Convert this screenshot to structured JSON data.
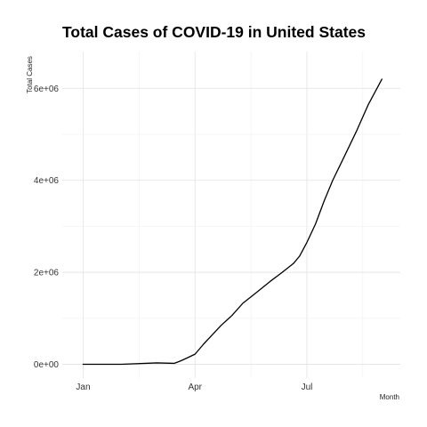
{
  "chart_data": {
    "type": "line",
    "title": "Total Cases of COVID-19 in United States",
    "xlabel": "Month",
    "ylabel": "Total Cases",
    "grid": true,
    "legend": "none",
    "x_ticks": [
      {
        "label": "Jan",
        "value": "2020-01-01"
      },
      {
        "label": "Apr",
        "value": "2020-04-01"
      },
      {
        "label": "Jul",
        "value": "2020-07-01"
      }
    ],
    "y_ticks": [
      {
        "label": "0e+00",
        "value": 0
      },
      {
        "label": "2e+06",
        "value": 2000000
      },
      {
        "label": "4e+06",
        "value": 4000000
      },
      {
        "label": "6e+06",
        "value": 6000000
      }
    ],
    "xlim": [
      "2019-12-15",
      "2020-09-15"
    ],
    "ylim": [
      -300000,
      6800000
    ],
    "series": [
      {
        "x": [
          "2020-01-01",
          "2020-02-01",
          "2020-03-01",
          "2020-03-15",
          "2020-03-20",
          "2020-03-25",
          "2020-04-01",
          "2020-04-08",
          "2020-04-15",
          "2020-04-22",
          "2020-05-01",
          "2020-05-10",
          "2020-05-20",
          "2020-06-01",
          "2020-06-10",
          "2020-06-20",
          "2020-06-25",
          "2020-07-01",
          "2020-07-08",
          "2020-07-15",
          "2020-07-22",
          "2020-08-01",
          "2020-08-10",
          "2020-08-20",
          "2020-08-31"
        ],
        "y": [
          0,
          10,
          30000,
          20000,
          70000,
          130000,
          220000,
          440000,
          640000,
          840000,
          1060000,
          1330000,
          1540000,
          1800000,
          1980000,
          2190000,
          2350000,
          2650000,
          3050000,
          3550000,
          4000000,
          4550000,
          5050000,
          5650000,
          6200000
        ]
      }
    ]
  }
}
